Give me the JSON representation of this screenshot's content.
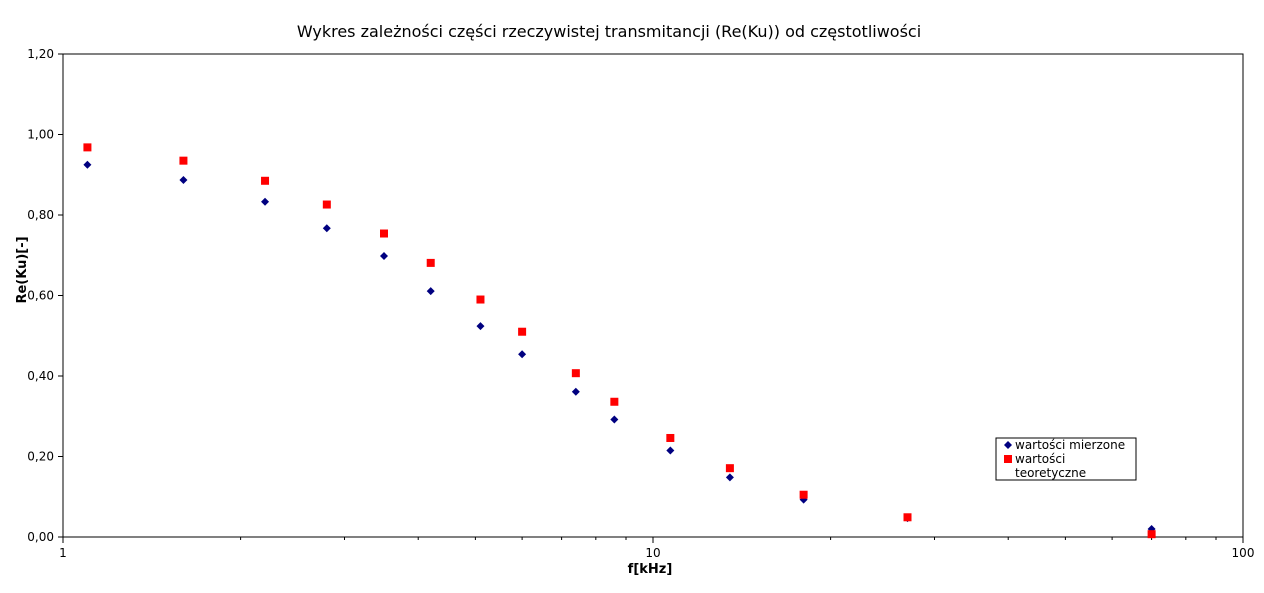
{
  "chart_data": {
    "type": "scatter",
    "title": "Wykres zależności części rzeczywistej transmitancji (Re(Ku)) od częstotliwości",
    "xlabel": "f[kHz]",
    "ylabel": "Re(Ku)[-]",
    "xscale": "log",
    "xlim": [
      1,
      100
    ],
    "ylim": [
      0,
      1.2
    ],
    "x_ticks": [
      1,
      10,
      100
    ],
    "x_tick_labels": [
      "1",
      "10",
      "100"
    ],
    "y_ticks": [
      0,
      0.2,
      0.4,
      0.6,
      0.8,
      1.0,
      1.2
    ],
    "y_tick_labels": [
      "0,00",
      "0,20",
      "0,40",
      "0,60",
      "0,80",
      "1,00",
      "1,20"
    ],
    "grid": false,
    "legend_position": "right",
    "series": [
      {
        "name": "wartości mierzone",
        "marker": "diamond",
        "color": "#000080",
        "x": [
          1.1,
          1.6,
          2.2,
          2.8,
          3.5,
          4.2,
          5.1,
          6.0,
          7.4,
          8.6,
          10.7,
          13.5,
          18.0,
          27.0,
          70.0
        ],
        "y": [
          0.925,
          0.887,
          0.833,
          0.767,
          0.698,
          0.611,
          0.524,
          0.454,
          0.361,
          0.292,
          0.215,
          0.148,
          0.093,
          0.047,
          0.02
        ]
      },
      {
        "name": "wartości teoretyczne",
        "marker": "square",
        "color": "#ff0000",
        "x": [
          1.1,
          1.6,
          2.2,
          2.8,
          3.5,
          4.2,
          5.1,
          6.0,
          7.4,
          8.6,
          10.7,
          13.5,
          18.0,
          27.0,
          70.0
        ],
        "y": [
          0.968,
          0.935,
          0.885,
          0.826,
          0.754,
          0.681,
          0.59,
          0.51,
          0.407,
          0.336,
          0.246,
          0.171,
          0.105,
          0.049,
          0.007
        ]
      }
    ],
    "legend": {
      "entries": [
        {
          "marker": "diamond",
          "color": "#000080",
          "lines": [
            "wartości mierzone"
          ]
        },
        {
          "marker": "square",
          "color": "#ff0000",
          "lines": [
            "wartości",
            "teoretyczne"
          ]
        }
      ]
    }
  }
}
